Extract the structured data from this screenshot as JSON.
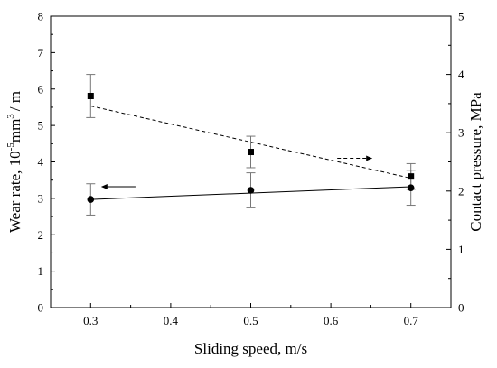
{
  "chart_data": {
    "type": "scatter",
    "title": "",
    "xlabel": "Sliding speed, m/s",
    "ylabel_left_main": "Wear rate, 10",
    "ylabel_left_sup1": "-5",
    "ylabel_left_mid": "mm",
    "ylabel_left_sup2": "3",
    "ylabel_left_end": "/ m",
    "ylabel_right": "Contact pressure, MPa",
    "xlim": [
      0.25,
      0.75
    ],
    "ylim_left": [
      0,
      8
    ],
    "ylim_right": [
      0,
      5
    ],
    "x_ticks": [
      "0.3",
      "0.4",
      "0.5",
      "0.6",
      "0.7"
    ],
    "y_ticks_left": [
      "0",
      "1",
      "2",
      "3",
      "4",
      "5",
      "6",
      "7",
      "8"
    ],
    "y_ticks_right": [
      "0",
      "1",
      "2",
      "3",
      "4",
      "5"
    ],
    "grid": false,
    "legend": "none",
    "series": [
      {
        "axis": "left",
        "marker": "circle",
        "line_style": "solid",
        "fit_line": {
          "x": [
            0.3,
            0.7
          ],
          "y": [
            2.97,
            3.32
          ]
        },
        "points": [
          {
            "x": 0.3,
            "y": 2.97,
            "err": 0.43
          },
          {
            "x": 0.5,
            "y": 3.22,
            "err": 0.48
          },
          {
            "x": 0.7,
            "y": 3.29,
            "err": 0.48
          }
        ]
      },
      {
        "axis": "right",
        "marker": "square",
        "line_style": "dashed",
        "fit_line": {
          "x": [
            0.3,
            0.7
          ],
          "y": [
            3.46,
            2.22
          ]
        },
        "points": [
          {
            "x": 0.3,
            "y": 3.63,
            "err": 0.37
          },
          {
            "x": 0.5,
            "y": 2.67,
            "err": 0.27
          },
          {
            "x": 0.7,
            "y": 2.25,
            "err": 0.22
          }
        ]
      }
    ],
    "annotations": [
      {
        "type": "arrow",
        "direction": "left",
        "style": "solid",
        "axis": "left",
        "x_from": 0.356,
        "x_to": 0.313,
        "y": 3.32
      },
      {
        "type": "arrow",
        "direction": "right",
        "style": "dashed",
        "axis": "left",
        "x_from": 0.608,
        "x_to": 0.652,
        "y": 4.1
      }
    ]
  }
}
